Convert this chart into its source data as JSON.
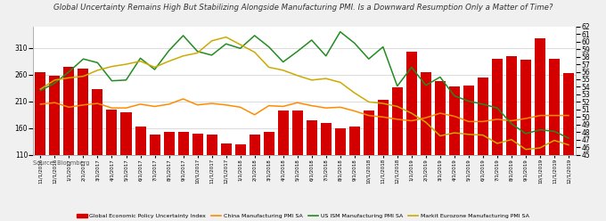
{
  "title": "Global Uncertainty Remains High But Stabilizing Alongside Manufacturing PMI. Is a Downward Resumption Only a Matter of Time?",
  "source": "Source: Bloomberg",
  "x_labels": [
    "11/1/2016",
    "12/1/2016",
    "1/1/2017",
    "2/1/2017",
    "3/1/2017",
    "4/1/2017",
    "5/1/2017",
    "6/1/2017",
    "7/1/2017",
    "8/1/2017",
    "9/1/2017",
    "10/1/2017",
    "11/1/2017",
    "12/1/2017",
    "1/1/2018",
    "2/1/2018",
    "3/1/2018",
    "4/1/2018",
    "5/1/2018",
    "6/1/2018",
    "7/1/2018",
    "8/1/2018",
    "9/1/2018",
    "10/1/2018",
    "11/1/2018",
    "12/1/2018",
    "1/1/2019",
    "2/1/2019",
    "3/1/2019",
    "4/1/2019",
    "5/1/2019",
    "6/1/2019",
    "7/1/2019",
    "8/1/2019",
    "9/1/2019",
    "10/1/2019",
    "11/1/2019",
    "12/1/2019"
  ],
  "bar_values": [
    265,
    258,
    274,
    272,
    232,
    194,
    190,
    163,
    148,
    152,
    152,
    150,
    148,
    131,
    130,
    148,
    152,
    192,
    193,
    175,
    169,
    160,
    163,
    193,
    212,
    236,
    303,
    265,
    248,
    237,
    239,
    255,
    290,
    295,
    288,
    328,
    290,
    263
  ],
  "china_pmi": [
    51.7,
    51.9,
    51.3,
    51.6,
    51.8,
    51.2,
    51.2,
    51.7,
    51.4,
    51.7,
    52.4,
    51.6,
    51.8,
    51.6,
    51.3,
    50.3,
    51.5,
    51.4,
    51.9,
    51.5,
    51.2,
    51.3,
    50.8,
    50.2,
    50.0,
    49.7,
    49.5,
    49.9,
    50.5,
    50.1,
    49.4,
    49.4,
    49.7,
    49.5,
    49.8,
    50.2,
    50.2,
    50.2
  ],
  "us_ism_pmi": [
    53.5,
    54.5,
    56.0,
    57.7,
    57.2,
    54.8,
    54.9,
    57.8,
    56.3,
    58.8,
    60.8,
    58.7,
    58.2,
    59.7,
    59.1,
    60.8,
    59.3,
    57.3,
    58.7,
    60.2,
    58.1,
    61.3,
    59.8,
    57.7,
    59.3,
    54.1,
    56.6,
    54.2,
    55.3,
    52.8,
    52.1,
    51.7,
    51.2,
    49.1,
    47.8,
    48.3,
    48.1,
    47.2
  ],
  "markit_eurozone_pmi": [
    53.7,
    54.9,
    55.2,
    55.4,
    56.2,
    56.7,
    57.0,
    57.4,
    56.6,
    57.4,
    58.1,
    58.5,
    60.1,
    60.6,
    59.6,
    58.6,
    56.6,
    56.2,
    55.5,
    54.9,
    55.1,
    54.6,
    53.2,
    52.0,
    51.8,
    51.4,
    50.5,
    49.3,
    47.5,
    47.9,
    47.7,
    47.6,
    46.5,
    47.0,
    45.7,
    45.9,
    46.9,
    46.3
  ],
  "bar_color": "#d40000",
  "china_color": "#ff8c00",
  "us_color": "#228b22",
  "eurozone_color": "#ccaa00",
  "ylim_left": [
    110,
    350
  ],
  "ylim_right": [
    45,
    62
  ],
  "yticks_left": [
    110,
    160,
    210,
    260,
    310
  ],
  "yticks_right": [
    45,
    46,
    47,
    48,
    49,
    50,
    51,
    52,
    53,
    54,
    55,
    56,
    57,
    58,
    59,
    60,
    61,
    62
  ],
  "background_color": "#f0f0f0",
  "plot_bg_color": "#ffffff",
  "grid_color": "#cccccc"
}
